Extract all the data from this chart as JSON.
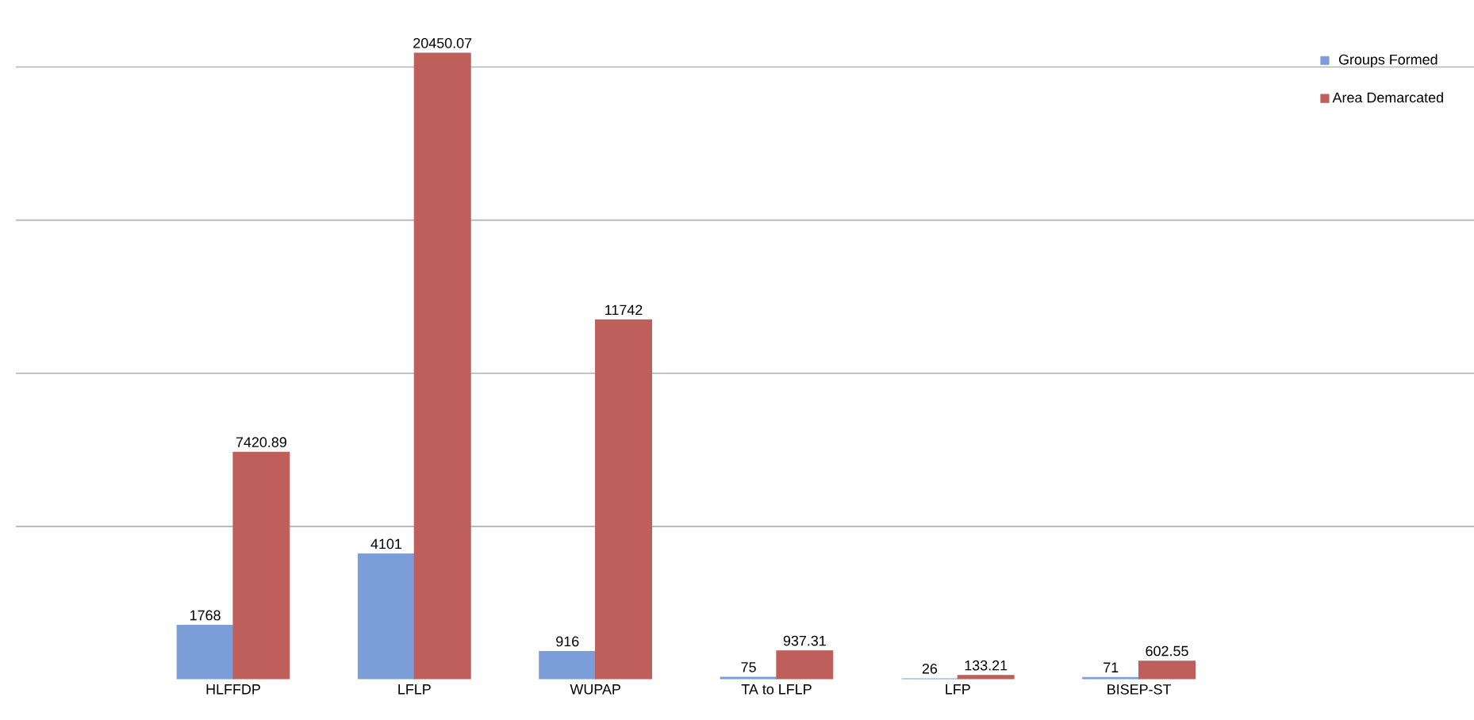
{
  "chart_data": {
    "type": "bar",
    "categories": [
      "HLFFDP",
      "LFLP",
      "WUPAP",
      "TA to LFLP",
      "LFP",
      "BISEP-ST"
    ],
    "series": [
      {
        "name": "Groups Formed",
        "color": "#7b9ed8",
        "values": [
          1768,
          4101,
          916,
          75,
          26,
          71
        ],
        "value_labels": [
          "1768",
          "4101",
          "916",
          "75",
          "26",
          "71"
        ]
      },
      {
        "name": "Area Demarcated",
        "color": "#bf5f5c",
        "values": [
          7420.89,
          20450.07,
          11742,
          937.31,
          133.21,
          602.55
        ],
        "value_labels": [
          "7420.89",
          "20450.07",
          "11742",
          "937.31",
          "133.21",
          "602.55"
        ]
      }
    ],
    "tick_labels": "x",
    "grid": "y",
    "legend": "top right"
  }
}
